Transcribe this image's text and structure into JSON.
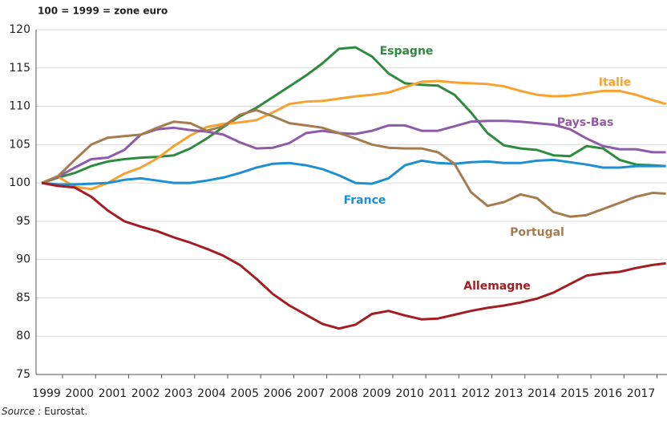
{
  "chart_data": {
    "type": "line",
    "title": "100 = 1999 = zone euro",
    "source_label": "Source :",
    "source": "Eurostat.",
    "x": [
      1999,
      1999.5,
      2000,
      2000.5,
      2001,
      2001.5,
      2002,
      2002.5,
      2003,
      2003.5,
      2004,
      2004.5,
      2005,
      2005.5,
      2006,
      2006.5,
      2007,
      2007.5,
      2008,
      2008.5,
      2009,
      2009.5,
      2010,
      2010.5,
      2011,
      2011.5,
      2012,
      2012.5,
      2013,
      2013.5,
      2014,
      2014.5,
      2015,
      2015.5,
      2016,
      2016.5,
      2017,
      2017.5,
      2017.9
    ],
    "xlim": [
      1999,
      2017.9
    ],
    "xticks": [
      1999,
      2000,
      2001,
      2002,
      2003,
      2004,
      2005,
      2006,
      2007,
      2008,
      2009,
      2010,
      2011,
      2012,
      2013,
      2014,
      2015,
      2016,
      2017
    ],
    "ylim": [
      75,
      120
    ],
    "yticks": [
      75,
      80,
      85,
      90,
      95,
      100,
      105,
      110,
      115,
      120
    ],
    "grid": true,
    "series": [
      {
        "name": "Espagne",
        "color": "#2e8b3e",
        "values": [
          100,
          100.7,
          101.3,
          102.2,
          102.8,
          103.1,
          103.3,
          103.4,
          103.6,
          104.5,
          105.8,
          107.3,
          108.7,
          109.8,
          111.2,
          112.6,
          114.0,
          115.6,
          117.5,
          117.7,
          116.5,
          114.3,
          113.0,
          112.8,
          112.7,
          111.5,
          109.2,
          106.5,
          104.9,
          104.5,
          104.3,
          103.6,
          103.5,
          104.8,
          104.5,
          103.0,
          102.4,
          102.3,
          102.2
        ]
      },
      {
        "name": "Italie",
        "color": "#f7a12f",
        "values": [
          100,
          100.8,
          99.5,
          99.2,
          100.0,
          101.2,
          102.0,
          103.2,
          104.8,
          106.2,
          107.3,
          107.7,
          107.9,
          108.2,
          109.2,
          110.3,
          110.6,
          110.7,
          111.0,
          111.3,
          111.5,
          111.8,
          112.5,
          113.2,
          113.3,
          113.1,
          113.0,
          112.9,
          112.6,
          112.0,
          111.5,
          111.3,
          111.4,
          111.7,
          112.0,
          112.0,
          111.5,
          110.8,
          110.3
        ]
      },
      {
        "name": "Pays-Bas",
        "color": "#8e5ba6",
        "values": [
          100,
          100.8,
          102.0,
          103.1,
          103.3,
          104.3,
          106.3,
          107.0,
          107.2,
          106.9,
          106.7,
          106.3,
          105.3,
          104.5,
          104.6,
          105.2,
          106.5,
          106.8,
          106.5,
          106.4,
          106.8,
          107.5,
          107.5,
          106.8,
          106.8,
          107.4,
          108.0,
          108.1,
          108.1,
          108.0,
          107.8,
          107.6,
          107.0,
          105.8,
          104.8,
          104.4,
          104.4,
          104.0,
          104.0
        ]
      },
      {
        "name": "France",
        "color": "#1e8fd0",
        "values": [
          100,
          99.8,
          99.8,
          99.9,
          100.0,
          100.4,
          100.6,
          100.3,
          100.0,
          100.0,
          100.3,
          100.7,
          101.3,
          102.0,
          102.5,
          102.6,
          102.3,
          101.8,
          101.0,
          100.0,
          99.9,
          100.6,
          102.3,
          102.9,
          102.6,
          102.5,
          102.7,
          102.8,
          102.6,
          102.6,
          102.9,
          103.0,
          102.7,
          102.4,
          102.0,
          102.0,
          102.2,
          102.2,
          102.2
        ]
      },
      {
        "name": "Portugal",
        "color": "#a67c4e",
        "values": [
          100,
          100.9,
          103.0,
          105.0,
          105.9,
          106.1,
          106.3,
          107.2,
          108.0,
          107.8,
          106.8,
          107.4,
          108.9,
          109.5,
          108.7,
          107.8,
          107.5,
          107.2,
          106.5,
          105.8,
          105.0,
          104.6,
          104.5,
          104.5,
          104.0,
          102.5,
          98.8,
          97.0,
          97.5,
          98.5,
          98.0,
          96.2,
          95.6,
          95.8,
          96.6,
          97.4,
          98.2,
          98.7,
          98.6
        ]
      },
      {
        "name": "Allemagne",
        "color": "#a31d22",
        "values": [
          100,
          99.6,
          99.4,
          98.2,
          96.4,
          95.0,
          94.3,
          93.7,
          92.9,
          92.2,
          91.4,
          90.5,
          89.3,
          87.5,
          85.5,
          84.0,
          82.8,
          81.6,
          81.0,
          81.5,
          82.9,
          83.3,
          82.7,
          82.2,
          82.3,
          82.8,
          83.3,
          83.7,
          84.0,
          84.4,
          84.9,
          85.7,
          86.8,
          87.9,
          88.2,
          88.4,
          88.9,
          89.3,
          89.5
        ]
      }
    ]
  }
}
